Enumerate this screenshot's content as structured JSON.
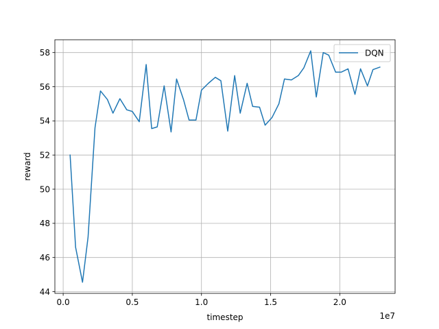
{
  "chart_data": {
    "type": "line",
    "xlabel": "timestep",
    "ylabel": "reward",
    "x_offset_text": "1e7",
    "xlim": [
      -0.06,
      2.4
    ],
    "ylim": [
      43.9,
      58.75
    ],
    "x_ticks": [
      0.0,
      0.5,
      1.0,
      1.5,
      2.0
    ],
    "x_tick_labels": [
      "0.0",
      "0.5",
      "1.0",
      "1.5",
      "2.0"
    ],
    "y_ticks": [
      44,
      46,
      48,
      50,
      52,
      54,
      56,
      58
    ],
    "y_tick_labels": [
      "44",
      "46",
      "48",
      "50",
      "52",
      "54",
      "56",
      "58"
    ],
    "grid": true,
    "legend_position": "top-right",
    "series": [
      {
        "name": "DQN",
        "color": "#1f77b4",
        "x": [
          0.05,
          0.09,
          0.14,
          0.18,
          0.23,
          0.27,
          0.32,
          0.36,
          0.41,
          0.46,
          0.5,
          0.55,
          0.6,
          0.64,
          0.68,
          0.73,
          0.78,
          0.82,
          0.87,
          0.91,
          0.96,
          1.0,
          1.05,
          1.1,
          1.14,
          1.19,
          1.24,
          1.28,
          1.33,
          1.37,
          1.42,
          1.46,
          1.51,
          1.56,
          1.6,
          1.65,
          1.7,
          1.74,
          1.79,
          1.83,
          1.88,
          1.92,
          1.97,
          2.01,
          2.06,
          2.11,
          2.15,
          2.2,
          2.24,
          2.29
        ],
        "y": [
          52.0,
          46.6,
          44.55,
          47.2,
          53.6,
          55.75,
          55.25,
          54.45,
          55.3,
          54.65,
          54.55,
          53.95,
          57.3,
          53.55,
          53.65,
          56.05,
          53.35,
          56.45,
          55.25,
          54.05,
          54.05,
          55.8,
          56.2,
          56.55,
          56.35,
          53.4,
          56.65,
          54.45,
          56.2,
          54.85,
          54.8,
          53.75,
          54.2,
          55.0,
          56.45,
          56.4,
          56.65,
          57.1,
          58.1,
          55.4,
          58.0,
          57.85,
          56.85,
          56.85,
          57.05,
          55.55,
          57.05,
          56.05,
          57.0,
          57.15
        ]
      }
    ]
  }
}
